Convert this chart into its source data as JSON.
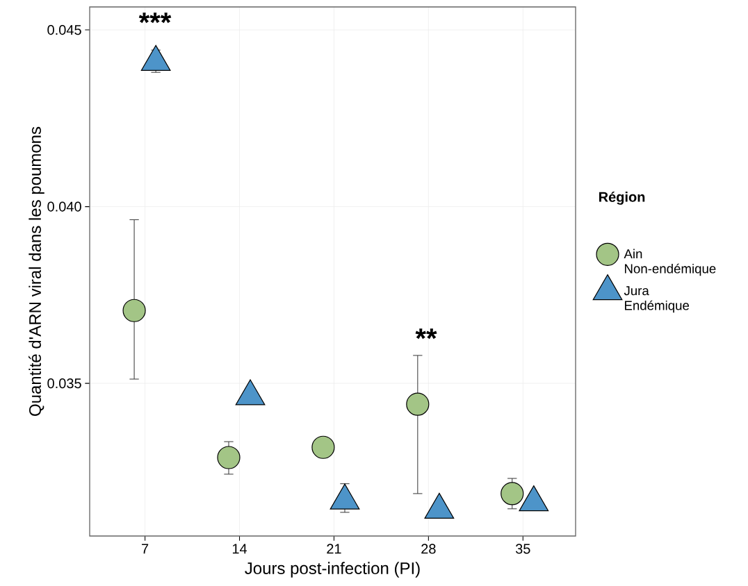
{
  "chart_data": {
    "type": "scatter",
    "xlabel": "Jours post-infection (PI)",
    "ylabel": "Quantité d'ARN viral dans les poumons",
    "legend_title": "Région",
    "xlim": [
      2.9,
      38.9
    ],
    "xticks": [
      7,
      14,
      21,
      28,
      35
    ],
    "ylim": [
      0.03068,
      0.04565
    ],
    "yticks": [
      {
        "value": 0.035,
        "label": "0.035"
      },
      {
        "value": 0.04,
        "label": "0.040"
      },
      {
        "value": 0.045,
        "label": "0.045"
      }
    ],
    "grid": true,
    "legend": "right",
    "series": [
      {
        "name": "Ain Non-endémique",
        "color": "#a3c586",
        "marker": "circle",
        "x": [
          6.2,
          13.2,
          20.2,
          27.2,
          34.2
        ],
        "values": [
          0.03706,
          0.0329,
          0.03319,
          0.03441,
          0.03188
        ],
        "errors": [
          [
            0.03512,
            0.03963
          ],
          [
            0.03243,
            0.03335
          ],
          null,
          [
            0.03188,
            0.03579
          ],
          [
            0.03145,
            0.03231
          ]
        ]
      },
      {
        "name": "Jura Endémique",
        "color": "#4d94c9",
        "marker": "triangle",
        "x": [
          7.8,
          14.8,
          21.8,
          28.8,
          35.8
        ],
        "values": [
          0.04409,
          0.03463,
          0.03168,
          0.03142,
          0.03163
        ],
        "errors": [
          [
            0.0438,
            0.04443
          ],
          null,
          [
            0.03135,
            0.03216
          ],
          [
            0.03152,
            0.03152
          ],
          null
        ]
      }
    ],
    "annotations": [
      "***",
      "**"
    ]
  }
}
